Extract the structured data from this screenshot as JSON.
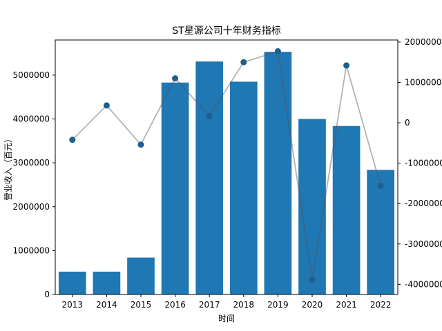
{
  "chart_data": {
    "type": "bar",
    "title": "ST星源公司十年财务指标",
    "xlabel": "时间",
    "ylabel": "营业收入（百元）",
    "y2label": "",
    "categories": [
      "2013",
      "2014",
      "2015",
      "2016",
      "2017",
      "2018",
      "2019",
      "2020",
      "2021",
      "2022"
    ],
    "ylim": [
      0,
      5800000
    ],
    "y2lim": [
      -4250000,
      2050000
    ],
    "yticks": [
      0,
      1000000,
      2000000,
      3000000,
      4000000,
      5000000
    ],
    "y2ticks": [
      -4000000,
      -3000000,
      -2000000,
      -1000000,
      0,
      1000000,
      2000000
    ],
    "ytick_labels": [
      "0",
      "1000000",
      "2000000",
      "3000000",
      "4000000",
      "5000000"
    ],
    "y2tick_labels": [
      "-4000000",
      "-3000000",
      "-2000000",
      "-1000000",
      "0",
      "1000000",
      "2000000"
    ],
    "series": [
      {
        "type": "bar",
        "axis": "left",
        "values": [
          520000,
          520000,
          840000,
          4830000,
          5310000,
          4850000,
          5530000,
          4000000,
          3840000,
          2840000
        ]
      },
      {
        "type": "line",
        "axis": "right",
        "markers": true,
        "values": [
          -420000,
          430000,
          -540000,
          1100000,
          170000,
          1500000,
          1770000,
          -3880000,
          1420000,
          -1560000
        ]
      }
    ],
    "colors": {
      "bar": "#1f77b4",
      "line": "#555555",
      "marker": "#1f5f8b",
      "axis": "#000000"
    }
  }
}
